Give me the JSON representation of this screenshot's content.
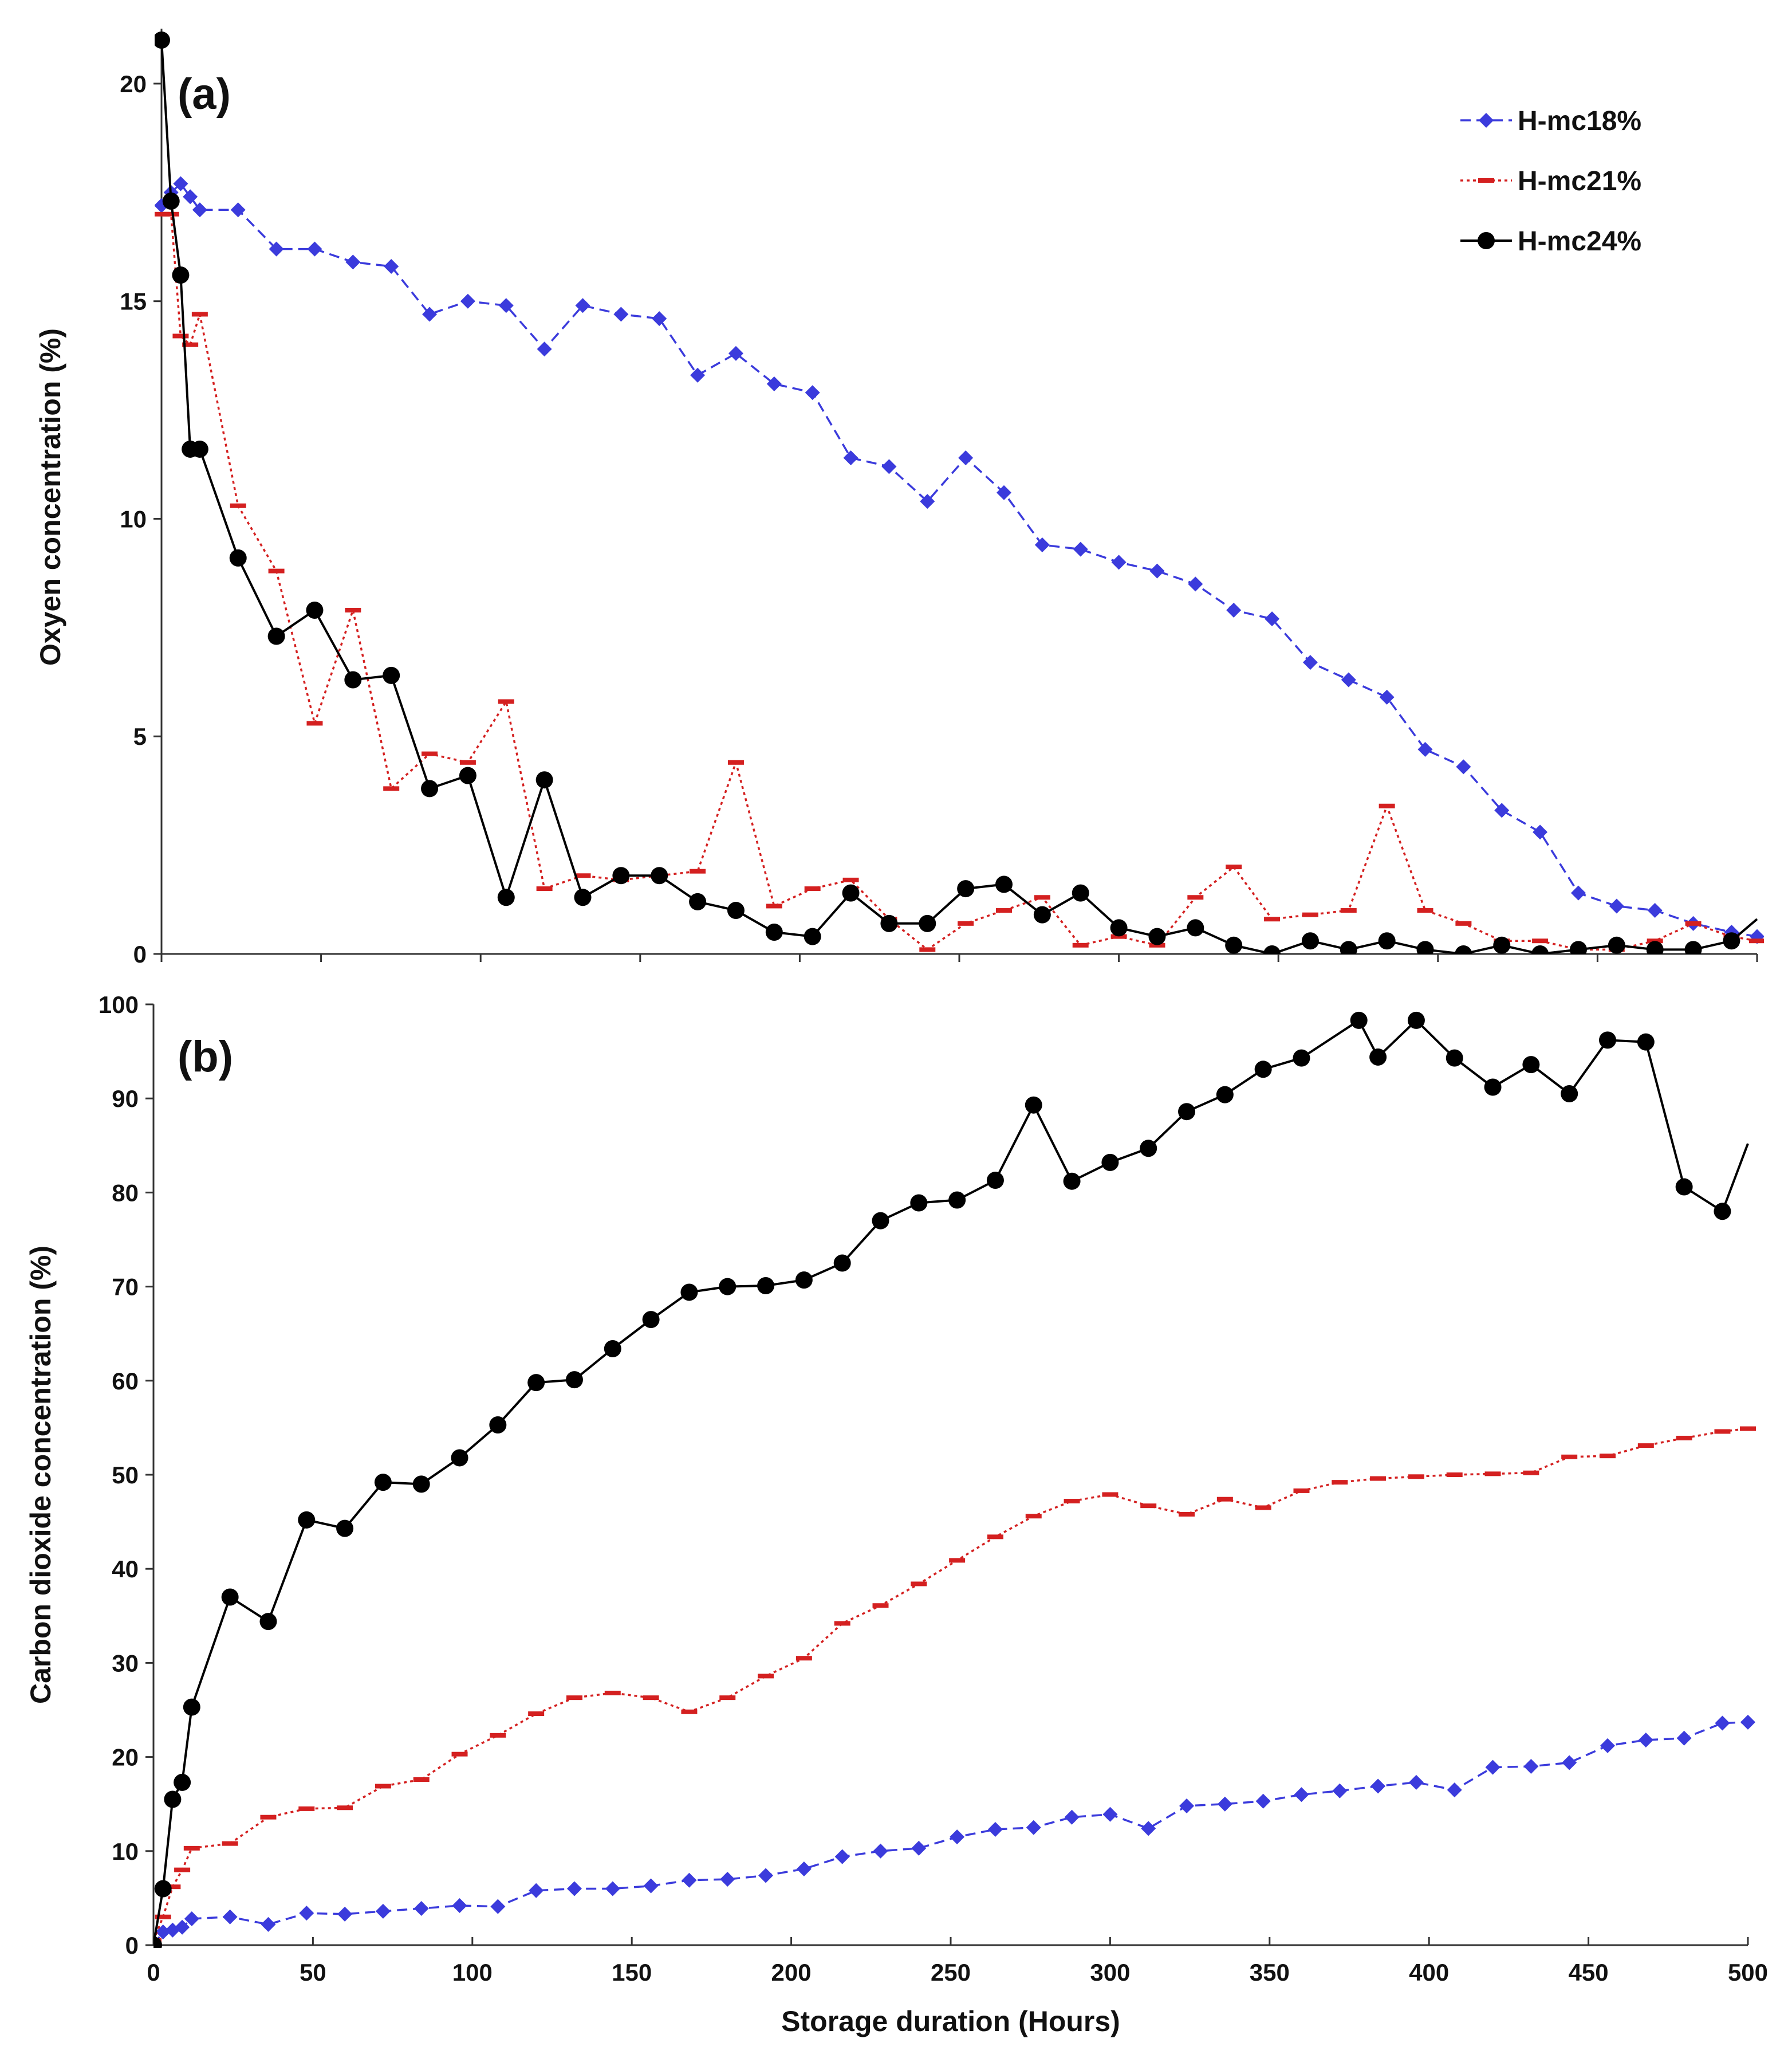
{
  "chart_data": [
    {
      "type": "line",
      "panel_label": "(a)",
      "xlabel": "",
      "ylabel": "Oxyen concentration (%)",
      "xlim": [
        0,
        500
      ],
      "ylim": [
        0,
        21
      ],
      "x_ticks": [
        0,
        50,
        100,
        150,
        200,
        250,
        300,
        350,
        400,
        450,
        500
      ],
      "y_ticks": [
        0,
        5,
        10,
        15,
        20
      ],
      "y_tick_labels": [
        "0",
        "5",
        "10",
        "15",
        "20"
      ],
      "legend_position": "top-right",
      "series": [
        {
          "name": "H-mc18%",
          "color": "#3b3bdc",
          "marker": "diamond",
          "dash": "dashed",
          "x": [
            0,
            3,
            6,
            9,
            12,
            24,
            36,
            48,
            60,
            72,
            84,
            96,
            108,
            120,
            132,
            144,
            156,
            168,
            180,
            192,
            204,
            216,
            228,
            240,
            252,
            264,
            276,
            288,
            300,
            312,
            324,
            336,
            348,
            360,
            372,
            384,
            396,
            408,
            420,
            432,
            444,
            456,
            468,
            480,
            492,
            500
          ],
          "y": [
            17.2,
            17.5,
            17.7,
            17.4,
            17.1,
            17.1,
            16.2,
            16.2,
            15.9,
            15.8,
            14.7,
            15.0,
            14.9,
            13.9,
            14.9,
            14.7,
            14.6,
            13.3,
            13.8,
            13.1,
            12.9,
            11.4,
            11.2,
            10.4,
            11.4,
            10.6,
            9.4,
            9.3,
            9.0,
            8.8,
            8.5,
            7.9,
            7.7,
            6.7,
            6.3,
            5.9,
            4.7,
            4.3,
            3.3,
            2.8,
            1.4,
            1.1,
            1.0,
            0.7,
            0.5,
            0.4
          ]
        },
        {
          "name": "H-mc21%",
          "color": "#d42020",
          "marker": "dash",
          "dash": "dotted",
          "x": [
            0,
            3,
            6,
            9,
            12,
            24,
            36,
            48,
            60,
            72,
            84,
            96,
            108,
            120,
            132,
            144,
            156,
            168,
            180,
            192,
            204,
            216,
            228,
            240,
            252,
            264,
            276,
            288,
            300,
            312,
            324,
            336,
            348,
            360,
            372,
            384,
            396,
            408,
            420,
            432,
            444,
            456,
            468,
            480,
            492,
            500
          ],
          "y": [
            17.0,
            17.0,
            14.2,
            14.0,
            14.7,
            10.3,
            8.8,
            5.3,
            7.9,
            3.8,
            4.6,
            4.4,
            5.8,
            1.5,
            1.8,
            1.7,
            1.8,
            1.9,
            4.4,
            1.1,
            1.5,
            1.7,
            0.8,
            0.1,
            0.7,
            1.0,
            1.3,
            0.2,
            0.4,
            0.2,
            1.3,
            2.0,
            0.8,
            0.9,
            1.0,
            3.4,
            1.0,
            0.7,
            0.3,
            0.3,
            0.1,
            0.1,
            0.3,
            0.7,
            0.4,
            0.3
          ]
        },
        {
          "name": "H-mc24%",
          "color": "#000000",
          "marker": "circle",
          "dash": "solid",
          "x": [
            0,
            3,
            6,
            9,
            12,
            24,
            36,
            48,
            60,
            72,
            84,
            96,
            108,
            120,
            132,
            144,
            156,
            168,
            180,
            192,
            204,
            216,
            228,
            240,
            252,
            264,
            276,
            288,
            300,
            312,
            324,
            336,
            348,
            360,
            372,
            384,
            396,
            408,
            420,
            432,
            444,
            456,
            468,
            480,
            492,
            500
          ],
          "y": [
            21.0,
            17.3,
            15.6,
            11.6,
            11.6,
            9.1,
            7.3,
            7.9,
            6.3,
            6.4,
            3.8,
            4.1,
            1.3,
            4.0,
            1.3,
            1.8,
            1.8,
            1.2,
            1.0,
            0.5,
            0.4,
            1.4,
            0.7,
            0.7,
            1.5,
            1.6,
            0.9,
            1.4,
            0.6,
            0.4,
            0.6,
            0.2,
            0.0,
            0.3,
            0.1,
            0.3,
            0.1,
            0.0,
            0.2,
            0.0,
            0.1,
            0.2,
            0.1,
            0.1,
            0.3,
            0.8
          ],
          "markers_until_x": 492
        }
      ]
    },
    {
      "type": "line",
      "panel_label": "(b)",
      "xlabel": "Storage duration (Hours)",
      "ylabel": "Carbon dioxide concentration (%)",
      "xlim": [
        0,
        500
      ],
      "ylim": [
        0,
        100
      ],
      "x_ticks": [
        0,
        50,
        100,
        150,
        200,
        250,
        300,
        350,
        400,
        450,
        500
      ],
      "x_tick_labels": [
        "0",
        "50",
        "100",
        "150",
        "200",
        "250",
        "300",
        "350",
        "400",
        "450",
        "500"
      ],
      "y_ticks": [
        0,
        10,
        20,
        30,
        40,
        50,
        60,
        70,
        80,
        90,
        100
      ],
      "y_tick_labels": [
        "0",
        "10",
        "20",
        "30",
        "40",
        "50",
        "60",
        "70",
        "80",
        "90",
        "100"
      ],
      "series": [
        {
          "name": "H-mc18%",
          "color": "#3b3bdc",
          "marker": "diamond",
          "dash": "dashed",
          "x": [
            0,
            3,
            6,
            9,
            12,
            24,
            36,
            48,
            60,
            72,
            84,
            96,
            108,
            120,
            132,
            144,
            156,
            168,
            180,
            192,
            204,
            216,
            228,
            240,
            252,
            264,
            276,
            288,
            300,
            312,
            324,
            336,
            348,
            360,
            372,
            384,
            396,
            408,
            420,
            432,
            444,
            456,
            468,
            480,
            492,
            500
          ],
          "y": [
            0.0,
            1.4,
            1.6,
            1.9,
            2.8,
            3.0,
            2.2,
            3.4,
            3.3,
            3.6,
            3.9,
            4.2,
            4.1,
            5.8,
            6.0,
            6.0,
            6.3,
            6.9,
            7.0,
            7.4,
            8.1,
            9.4,
            10.0,
            10.3,
            11.5,
            12.3,
            12.5,
            13.6,
            13.9,
            12.4,
            14.8,
            15.0,
            15.3,
            16.0,
            16.4,
            16.9,
            17.3,
            16.5,
            18.9,
            19.0,
            19.4,
            21.2,
            21.8,
            22.0,
            23.6,
            23.7
          ]
        },
        {
          "name": "H-mc21%",
          "color": "#d42020",
          "marker": "dash",
          "dash": "dotted",
          "x": [
            0,
            3,
            6,
            9,
            12,
            24,
            36,
            48,
            60,
            72,
            84,
            96,
            108,
            120,
            132,
            144,
            156,
            168,
            180,
            192,
            204,
            216,
            228,
            240,
            252,
            264,
            276,
            288,
            300,
            312,
            324,
            336,
            348,
            360,
            372,
            384,
            396,
            408,
            420,
            432,
            444,
            456,
            468,
            480,
            492,
            500
          ],
          "y": [
            0.5,
            3.0,
            6.2,
            8.0,
            10.3,
            10.8,
            13.6,
            14.5,
            14.6,
            16.9,
            17.6,
            20.3,
            22.3,
            24.6,
            26.3,
            26.8,
            26.3,
            24.8,
            26.3,
            28.6,
            30.5,
            34.2,
            36.1,
            38.4,
            40.9,
            43.4,
            45.6,
            47.2,
            47.9,
            46.7,
            45.8,
            47.4,
            46.5,
            48.3,
            49.2,
            49.6,
            49.8,
            50.0,
            50.1,
            50.2,
            51.9,
            52.0,
            53.1,
            53.9,
            54.6,
            54.9
          ]
        },
        {
          "name": "H-mc24%",
          "color": "#000000",
          "marker": "circle",
          "dash": "solid",
          "x": [
            0,
            3,
            6,
            9,
            12,
            24,
            36,
            48,
            60,
            72,
            84,
            96,
            108,
            120,
            132,
            144,
            156,
            168,
            180,
            192,
            204,
            216,
            228,
            240,
            252,
            264,
            276,
            288,
            300,
            312,
            324,
            336,
            348,
            360,
            378,
            384,
            396,
            408,
            420,
            432,
            444,
            456,
            468,
            480,
            492,
            500
          ],
          "y": [
            0.0,
            6.0,
            15.5,
            17.3,
            25.3,
            37.0,
            34.4,
            45.2,
            44.3,
            49.2,
            49.0,
            51.8,
            55.3,
            59.8,
            60.1,
            63.4,
            66.5,
            69.4,
            70.0,
            70.1,
            70.7,
            72.5,
            77.0,
            78.9,
            79.2,
            81.3,
            89.3,
            81.2,
            83.2,
            84.7,
            88.6,
            90.4,
            93.1,
            94.3,
            98.3,
            94.4,
            98.3,
            94.3,
            91.2,
            93.6,
            90.5,
            96.2,
            96.0,
            80.6,
            78.0,
            85.2
          ],
          "markers_until_x": 492
        }
      ]
    }
  ]
}
